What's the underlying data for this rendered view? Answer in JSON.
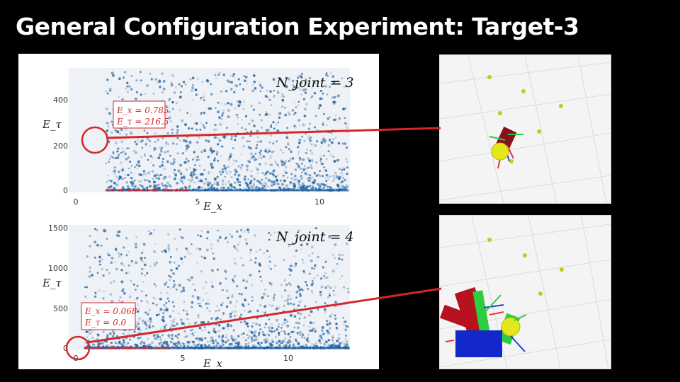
{
  "title": "General Configuration Experiment: Target-3",
  "chart_data": [
    {
      "type": "scatter",
      "title": "",
      "panel_label": "N_joint = 3",
      "xlabel": "E_x",
      "ylabel": "E_τ",
      "xlim": [
        -0.3,
        11.5
      ],
      "ylim": [
        -5,
        540
      ],
      "x_ticks": [
        "0",
        "5",
        "10"
      ],
      "y_ticks": [
        "0",
        "200",
        "400"
      ],
      "annotation": {
        "lines": [
          "E_x = 0.785",
          "E_τ = 216.5"
        ],
        "x": 0.785,
        "y": 216.5
      },
      "point_color": "#1f5f9e",
      "highlight_color": "#d62728"
    },
    {
      "type": "scatter",
      "title": "",
      "panel_label": "N_joint = 4",
      "xlabel": "E_x",
      "ylabel": "E_τ",
      "xlim": [
        -0.3,
        12.5
      ],
      "ylim": [
        -30,
        1580
      ],
      "x_ticks": [
        "0",
        "5",
        "10"
      ],
      "y_ticks": [
        "0",
        "500",
        "1000",
        "1500"
      ],
      "annotation": {
        "lines": [
          "E_x = 0.068",
          "E_τ = 0.0"
        ],
        "x": 0.068,
        "y": 0.0
      },
      "point_color": "#1f5f9e",
      "highlight_color": "#d62728"
    }
  ],
  "colors": {
    "background": "#000000",
    "title": "#ffffff",
    "callout": "#d62728",
    "target": "#c8c81e"
  }
}
